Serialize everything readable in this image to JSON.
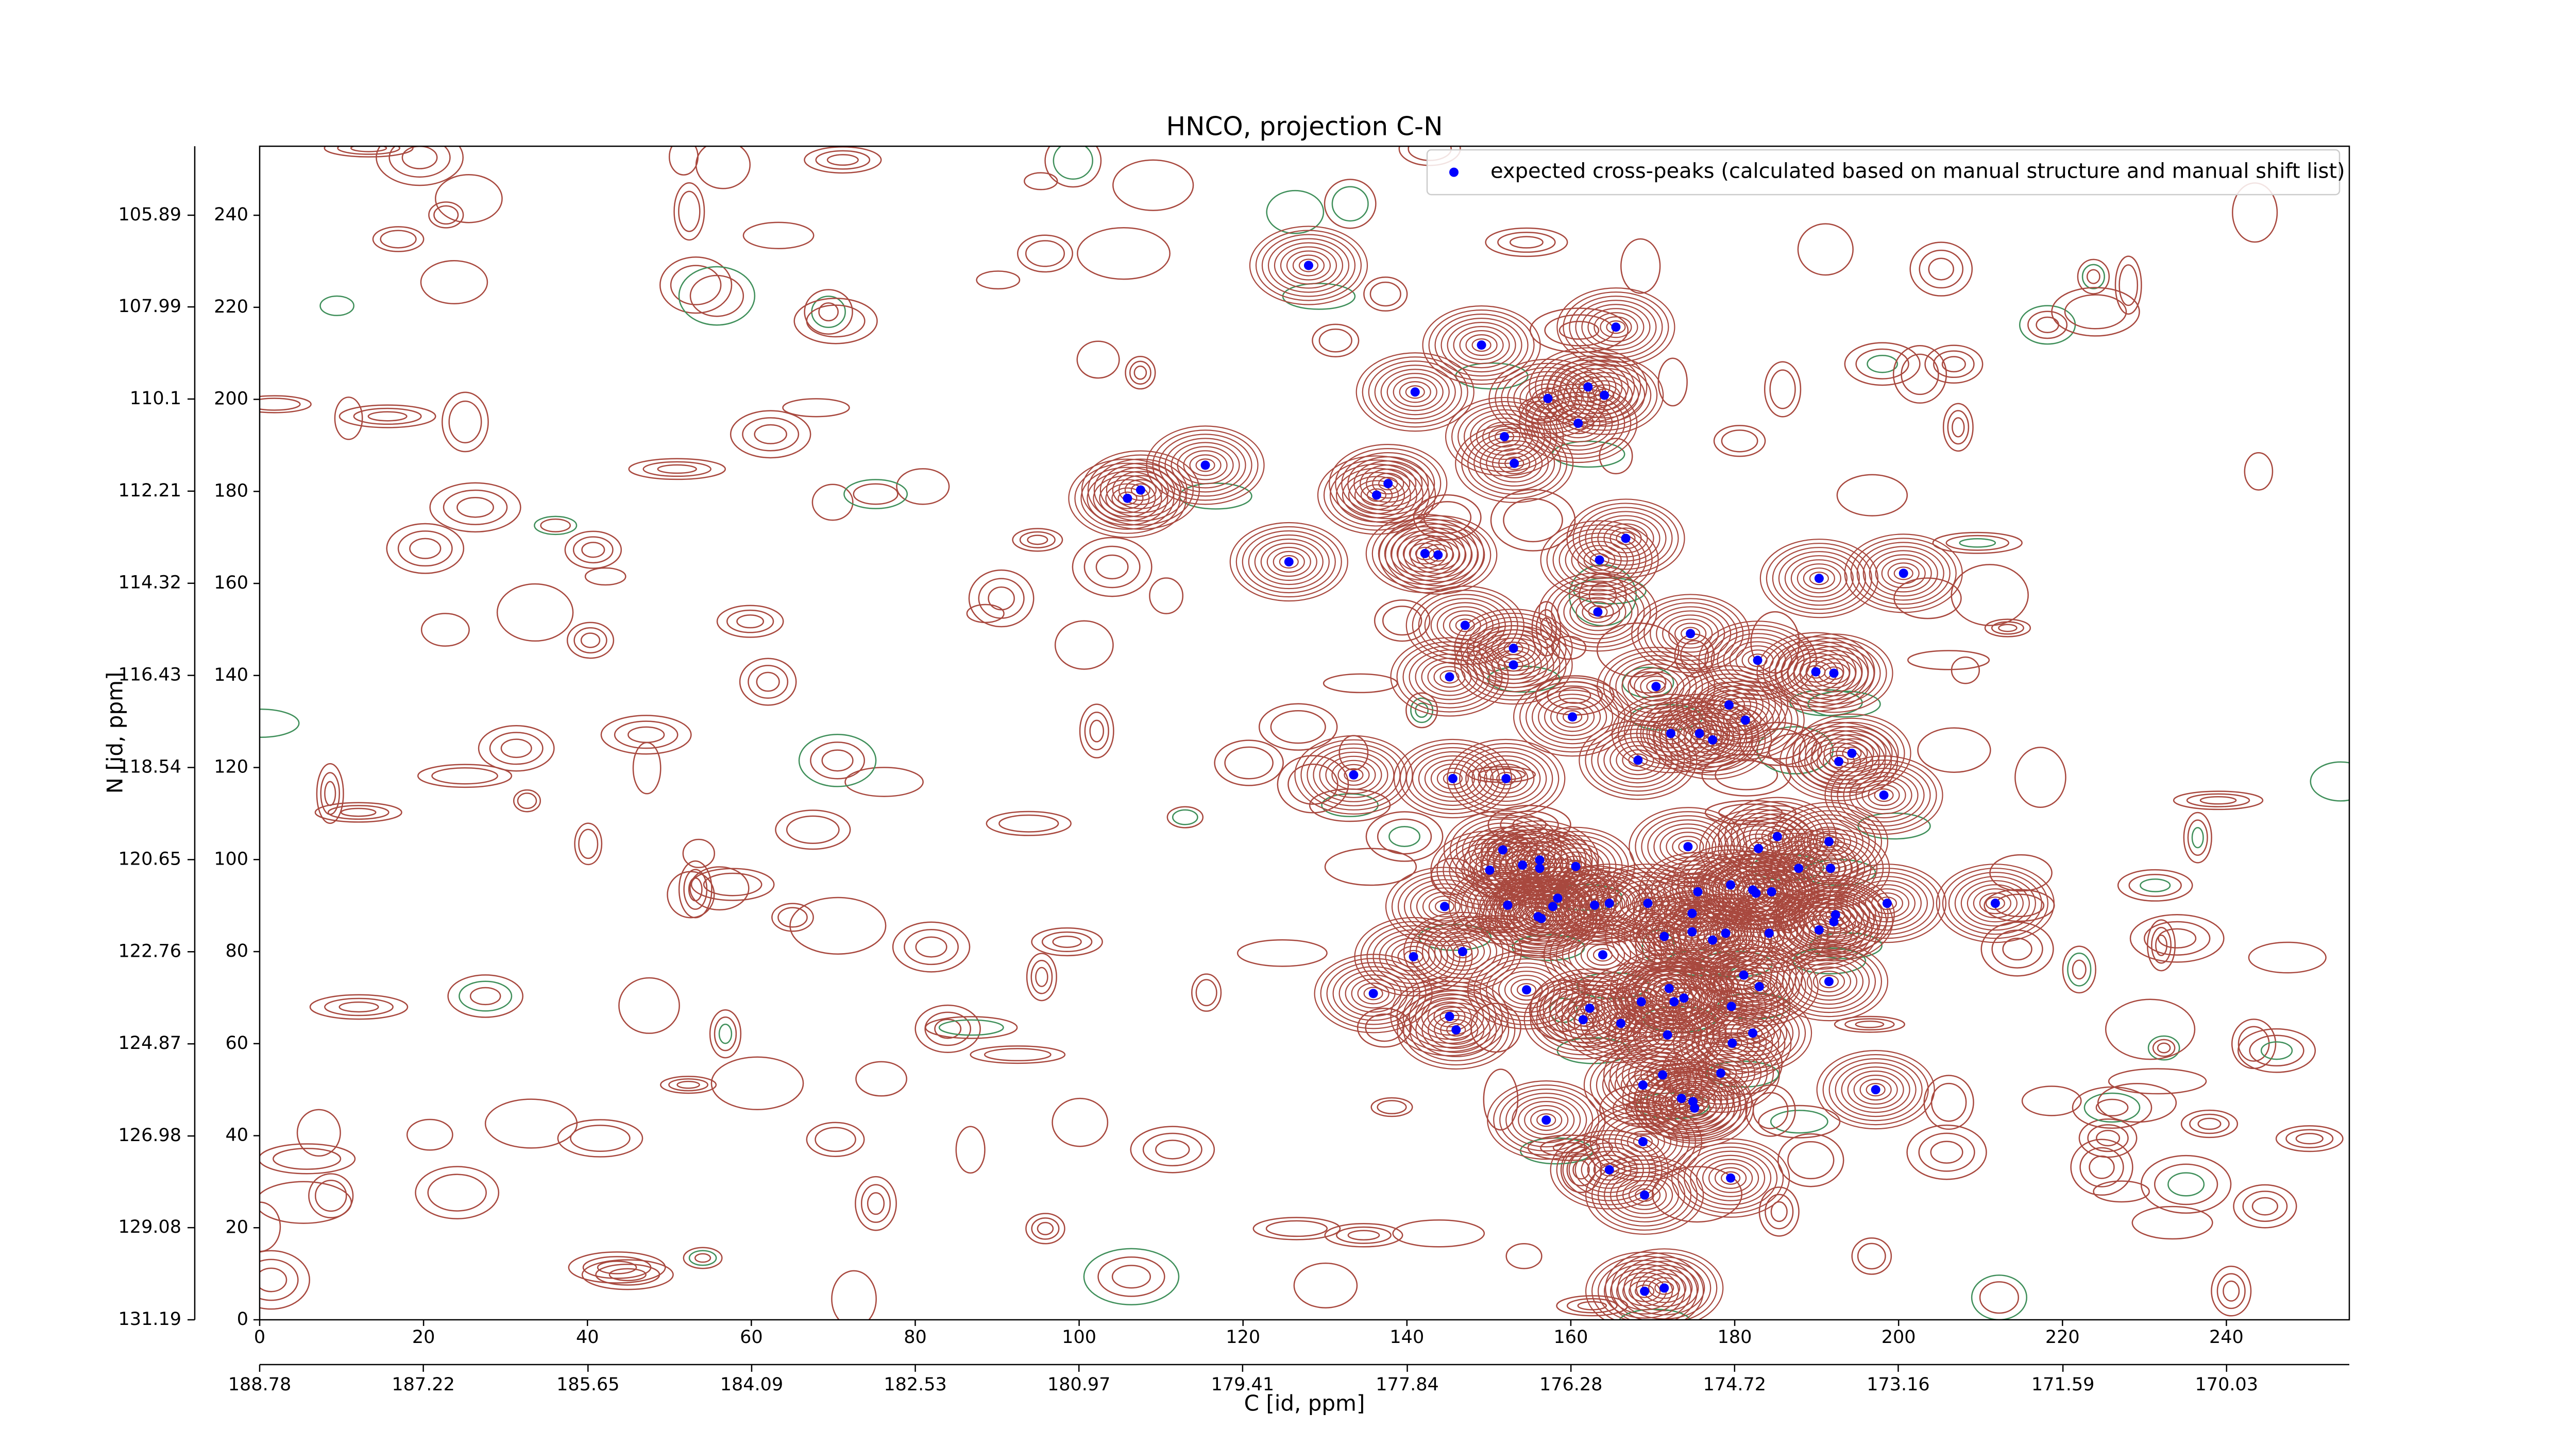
{
  "chart_data": {
    "type": "scatter",
    "title": "HNCO, projection C-N",
    "xlabel": "C [id, ppm]",
    "ylabel": "N [id, ppm]",
    "legend": "upper right",
    "xlim": [
      0,
      255
    ],
    "ylim": [
      0,
      255
    ],
    "xticks": [
      0,
      20,
      40,
      60,
      80,
      100,
      120,
      140,
      160,
      180,
      200,
      220,
      240
    ],
    "yticks": [
      0,
      20,
      40,
      60,
      80,
      100,
      120,
      140,
      160,
      180,
      200,
      220,
      240
    ],
    "x2lim": [
      188.78,
      168.86
    ],
    "x2ticks": [
      188.78,
      187.22,
      185.65,
      184.09,
      182.53,
      180.97,
      179.41,
      177.84,
      176.28,
      174.72,
      173.16,
      171.59,
      170.03
    ],
    "y2lim": [
      131.19,
      104.31
    ],
    "y2ticks": [
      131.19,
      129.08,
      126.98,
      124.87,
      122.76,
      120.65,
      118.54,
      116.43,
      114.32,
      112.21,
      110.1,
      107.99,
      105.89
    ],
    "series": [
      {
        "name": "expected cross-peaks (calculated based on manual structure and manual shift list)",
        "color": "#0000ff",
        "x": [
          128.0,
          165.5,
          149.1,
          141.0,
          157.2,
          162.1,
          164.1,
          160.9,
          151.9,
          153.1,
          115.4,
          107.5,
          105.9,
          137.7,
          136.3,
          166.7,
          142.2,
          143.8,
          125.6,
          163.5,
          190.3,
          200.6,
          147.1,
          163.3,
          153.0,
          174.6,
          153.0,
          145.2,
          170.4,
          182.8,
          189.9,
          192.1,
          160.2,
          172.2,
          179.3,
          175.7,
          177.3,
          181.3,
          194.3,
          192.7,
          133.5,
          145.6,
          152.1,
          168.2,
          198.2,
          185.2,
          174.3,
          182.9,
          191.5,
          151.7,
          154.1,
          156.2,
          156.2,
          160.6,
          150.1,
          187.8,
          191.7,
          158.4,
          157.8,
          179.5,
          182.2,
          182.6,
          184.5,
          175.5,
          169.4,
          164.7,
          162.9,
          152.3,
          144.6,
          198.6,
          211.8,
          156.0,
          156.4,
          192.3,
          192.1,
          174.8,
          174.8,
          178.9,
          184.2,
          190.3,
          171.4,
          177.3,
          163.9,
          146.8,
          140.8,
          181.1,
          191.5,
          135.9,
          154.6,
          172.0,
          172.6,
          173.8,
          168.6,
          183.0,
          179.6,
          145.2,
          146.0,
          162.3,
          161.5,
          166.1,
          171.8,
          182.2,
          179.7,
          178.3,
          171.2,
          168.8,
          173.5,
          174.9,
          175.1,
          197.2,
          157.0,
          168.8,
          164.7,
          179.5,
          169.0,
          171.4,
          169.0
        ],
        "values": [
          229.1,
          215.7,
          211.8,
          201.6,
          200.2,
          202.7,
          200.9,
          194.8,
          191.9,
          186.1,
          185.7,
          180.3,
          178.5,
          181.7,
          179.2,
          169.8,
          166.5,
          166.2,
          164.7,
          165.1,
          161.1,
          162.2,
          150.9,
          153.8,
          145.9,
          149.1,
          142.3,
          139.7,
          137.6,
          143.3,
          140.8,
          140.5,
          131.0,
          127.4,
          133.6,
          127.4,
          126.0,
          130.3,
          123.1,
          121.3,
          118.4,
          117.6,
          117.6,
          121.6,
          114.0,
          105.0,
          102.8,
          102.4,
          103.9,
          102.1,
          98.8,
          99.9,
          98.1,
          98.5,
          97.7,
          98.1,
          98.1,
          91.6,
          89.8,
          94.5,
          93.4,
          92.7,
          93.0,
          93.0,
          90.5,
          90.5,
          90.1,
          90.1,
          89.8,
          90.5,
          90.5,
          87.6,
          87.2,
          88.0,
          86.5,
          88.3,
          84.3,
          84.0,
          84.0,
          84.7,
          83.3,
          82.5,
          79.3,
          80.0,
          78.9,
          74.9,
          73.5,
          70.9,
          71.7,
          72.0,
          69.1,
          69.9,
          69.1,
          72.4,
          68.1,
          65.9,
          63.0,
          67.7,
          65.2,
          64.4,
          61.9,
          62.3,
          60.1,
          53.6,
          53.2,
          51.0,
          48.1,
          47.4,
          46.0,
          50.0,
          43.4,
          38.7,
          32.6,
          30.8,
          27.1,
          6.9,
          6.2
        ]
      }
    ]
  }
}
